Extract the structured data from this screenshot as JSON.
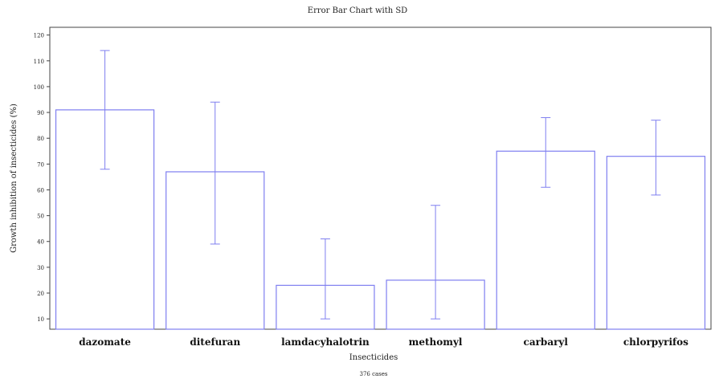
{
  "chart_data": {
    "type": "bar",
    "title": "Error Bar Chart with SD",
    "xlabel": "Insecticides",
    "ylabel": "Growth inhibition of insecticides (%)",
    "footnote": "376 cases",
    "categories": [
      "dazomate",
      "ditefuran",
      "lamdacyhalotrin",
      "methomyl",
      "carbaryl",
      "chlorpyrifos"
    ],
    "values": [
      91,
      67,
      23,
      25,
      75,
      73
    ],
    "error_low": [
      68,
      39,
      10,
      10,
      61,
      58
    ],
    "error_high": [
      114,
      94,
      41,
      54,
      88,
      87
    ],
    "ylim": [
      6,
      123
    ],
    "yticks": [
      "10",
      "20",
      "30",
      "40",
      "50",
      "60",
      "70",
      "80",
      "90",
      "100",
      "110",
      "120"
    ],
    "grid": false,
    "bar_color": "#7f7ff0",
    "error_color": "#7f7ff0"
  }
}
